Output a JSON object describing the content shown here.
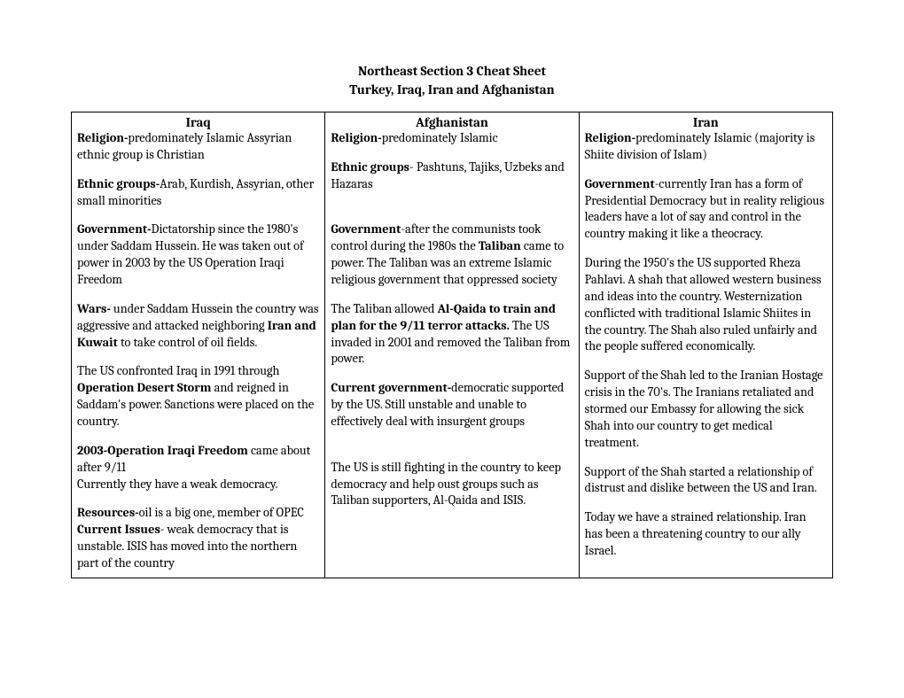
{
  "title_line1": "Northeast Section 3 Cheat Sheet",
  "title_line2": "Turkey, Iraq, Iran and Afghanistan",
  "columns": {
    "iraq": {
      "header": "Iraq",
      "religion_label": "Religion-",
      "religion_text": "predominately Islamic Assyrian ethnic group is Christian",
      "ethnic_label": "Ethnic groups-",
      "ethnic_text": "Arab, Kurdish, Assyrian, other small minorities",
      "gov_label": "Government-",
      "gov_text": "Dictatorship since the 1980's under Saddam Hussein. He was taken out of power in 2003 by the US Operation Iraqi Freedom",
      "wars_label": "Wars-",
      "wars_text_a": " under Saddam Hussein the country was aggressive and attacked neighboring ",
      "wars_bold": "Iran and Kuwait",
      "wars_text_b": " to take control of oil fields.",
      "desert_a": "The US confronted Iraq in 1991 through ",
      "desert_bold": "Operation Desert Storm",
      "desert_b": " and reigned in Saddam's power. Sanctions were placed on the country.",
      "oif_bold": "2003-Operation Iraqi Freedom",
      "oif_text": " came about after 9/11",
      "oif_tail": "Currently they have a weak democracy.",
      "res_label": "Resources-",
      "res_text": "oil is a big one, member of OPEC",
      "issues_label": "Current Issues",
      "issues_text": "- weak democracy that is unstable. ISIS has moved into the northern part of the country"
    },
    "afghanistan": {
      "header": "Afghanistan",
      "religion_label": "Religion-",
      "religion_text": "predominately Islamic",
      "ethnic_label": "Ethnic groups",
      "ethnic_text": "- Pashtuns, Tajiks, Uzbeks and Hazaras",
      "gov_label": "Government",
      "gov_text_a": "-after the communists took control during the 1980s the ",
      "gov_bold": "Taliban",
      "gov_text_b": " came to power. The Taliban was an extreme Islamic religious government that oppressed society",
      "aq_a": "The Taliban allowed ",
      "aq_bold": "Al-Qaida to train and plan for the 9/11 terror attacks.",
      "aq_b": " The US invaded in 2001 and removed the Taliban from power.",
      "cg_label": "Current government-",
      "cg_text": "democratic supported by the US. Still unstable and unable to effectively deal with insurgent groups",
      "tail": "The US is still fighting in the country to keep democracy and help oust groups such as Taliban supporters, Al-Qaida and ISIS."
    },
    "iran": {
      "header": "Iran",
      "religion_label": "Religion-",
      "religion_text": "predominately Islamic (majority is Shiite division of Islam)",
      "gov_label": "Government",
      "gov_text": "-currently Iran has a form of Presidential Democracy but in reality religious leaders have a lot of say and control in the country making it like a theocracy.",
      "p3": "During the 1950's the US supported Rheza Pahlavi. A shah that allowed western business and ideas into the country. Westernization conflicted with traditional Islamic Shiites in the country. The Shah also ruled unfairly and the people suffered economically.",
      "p4": "Support of the Shah led to the Iranian Hostage crisis in the 70's. The Iranians retaliated and stormed our Embassy for allowing the sick Shah into our country to get medical treatment.",
      "p5": "Support of the Shah started a relationship of distrust and dislike between the US and Iran.",
      "p6": "Today we have a strained relationship. Iran has been a threatening country to our ally Israel."
    }
  }
}
